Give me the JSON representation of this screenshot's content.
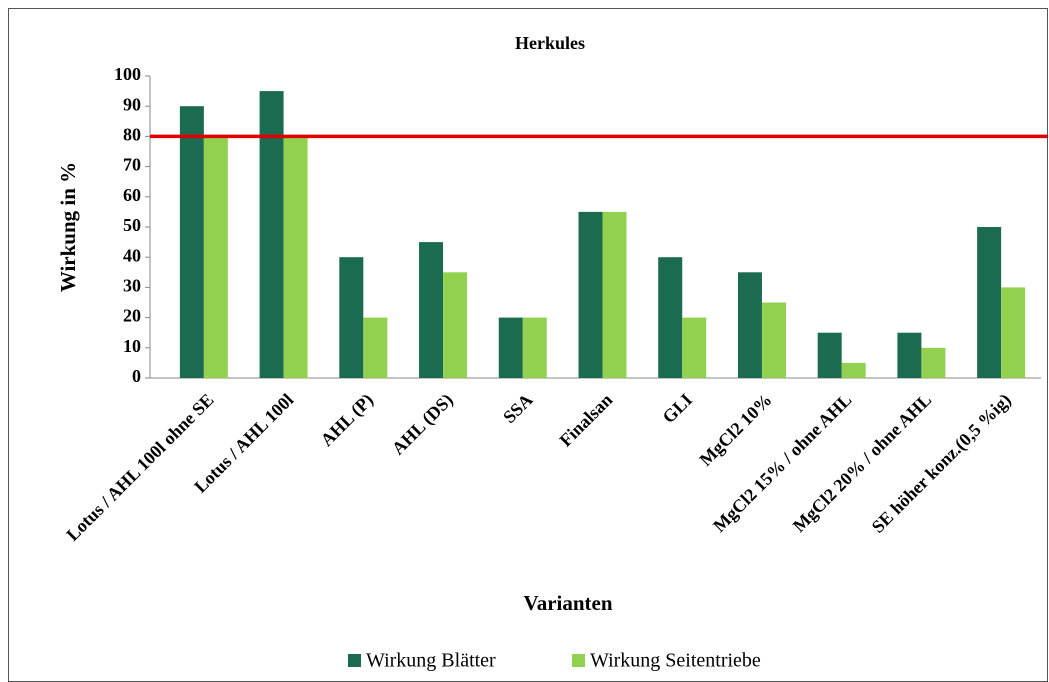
{
  "chart_data": {
    "type": "bar",
    "title": "Herkules",
    "x_label": "Varianten",
    "y_label": "Wirkung in %",
    "categories": [
      "Lotus / AHL 100l ohne SE",
      "Lotus / AHL 100l",
      "AHL (P)",
      "AHL (DS)",
      "SSA",
      "Finalsan",
      "GLI",
      "MgCl2 10%",
      "MgCl2 15% / ohne AHL",
      "MgCl2 20% / ohne AHL",
      "SE höher konz.(0,5 %ig)"
    ],
    "series": [
      {
        "name": "Wirkung Blätter",
        "color": "#1a6b4f",
        "values": [
          90,
          95,
          40,
          45,
          20,
          55,
          40,
          35,
          15,
          15,
          50
        ]
      },
      {
        "name": "Wirkung Seitentriebe",
        "color": "#92d050",
        "values": [
          80,
          80,
          20,
          35,
          20,
          55,
          20,
          25,
          5,
          10,
          30
        ]
      }
    ],
    "reference_line": {
      "value": 80,
      "color": "#e00000"
    },
    "ylim": [
      0,
      100
    ],
    "yticks": [
      0,
      10,
      20,
      30,
      40,
      50,
      60,
      70,
      80,
      90,
      100
    ],
    "grid": false,
    "legend": "bottom"
  }
}
